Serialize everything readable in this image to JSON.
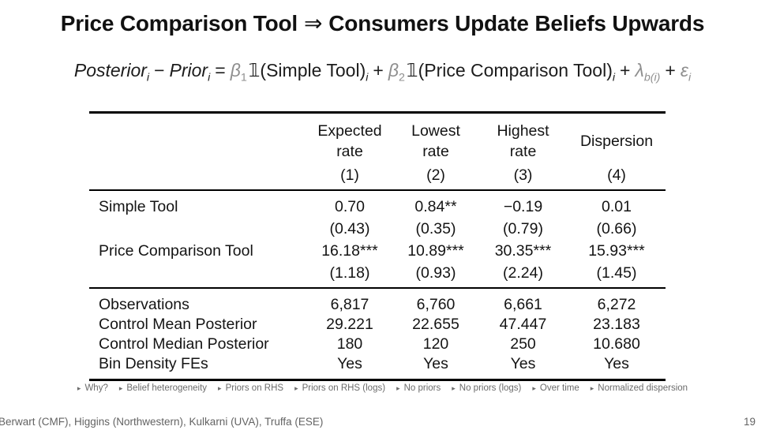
{
  "title": {
    "part1": "Price Comparison Tool",
    "arrow": "⇒",
    "part2": "Consumers Update Beliefs Upwards"
  },
  "equation": {
    "posterior": "Posterior",
    "prior": "Prior",
    "i": "i",
    "minus": "−",
    "equals": "=",
    "plus": "+",
    "beta": "β",
    "sub1": "1",
    "sub2": "2",
    "indicator": "𝟙",
    "lparen": "(",
    "rparen": ")",
    "simple_tool": "Simple Tool",
    "price_comparison_tool": "Price Comparison Tool",
    "lambda": "λ",
    "lambda_sub": "b(i)",
    "epsilon": "ε"
  },
  "table": {
    "headers": [
      {
        "line1": "Expected",
        "line2": "rate",
        "num": "(1)"
      },
      {
        "line1": "Lowest",
        "line2": "rate",
        "num": "(2)"
      },
      {
        "line1": "Highest",
        "line2": "rate",
        "num": "(3)"
      },
      {
        "line1": "Dispersion",
        "line2": "",
        "num": "(4)"
      }
    ],
    "coef_rows": [
      {
        "label": "Simple Tool",
        "values": [
          "0.70",
          "0.84**",
          "−0.19",
          "0.01"
        ],
        "ses": [
          "(0.43)",
          "(0.35)",
          "(0.79)",
          "(0.66)"
        ]
      },
      {
        "label": "Price Comparison Tool",
        "values": [
          "16.18***",
          "10.89***",
          "30.35***",
          "15.93***"
        ],
        "ses": [
          "(1.18)",
          "(0.93)",
          "(2.24)",
          "(1.45)"
        ]
      }
    ],
    "stat_rows": [
      {
        "label": "Observations",
        "values": [
          "6,817",
          "6,760",
          "6,661",
          "6,272"
        ]
      },
      {
        "label": "Control Mean Posterior",
        "values": [
          "29.221",
          "22.655",
          "47.447",
          "23.183"
        ]
      },
      {
        "label": "Control Median Posterior",
        "values": [
          "180",
          "120",
          "250",
          "10.680"
        ]
      },
      {
        "label": "Bin Density FEs",
        "values": [
          "Yes",
          "Yes",
          "Yes",
          "Yes"
        ]
      }
    ]
  },
  "nav": {
    "bullet": "▸",
    "items": [
      "Why?",
      "Belief heterogeneity",
      "Priors on RHS",
      "Priors on RHS (logs)",
      "No priors",
      "No priors (logs)",
      "Over time",
      "Normalized dispersion"
    ]
  },
  "footer": {
    "authors": "Berwart (CMF), Higgins (Northwestern), Kulkarni (UVA), Truffa (ESE)",
    "page": "19"
  },
  "colors": {
    "background": "#ffffff",
    "title_text": "#111111",
    "body_text": "#1a1a1a",
    "greek_gray": "#8f8f8f",
    "nav_gray": "#6b6b6b",
    "footer_gray": "#636363",
    "rule_black": "#000000"
  }
}
